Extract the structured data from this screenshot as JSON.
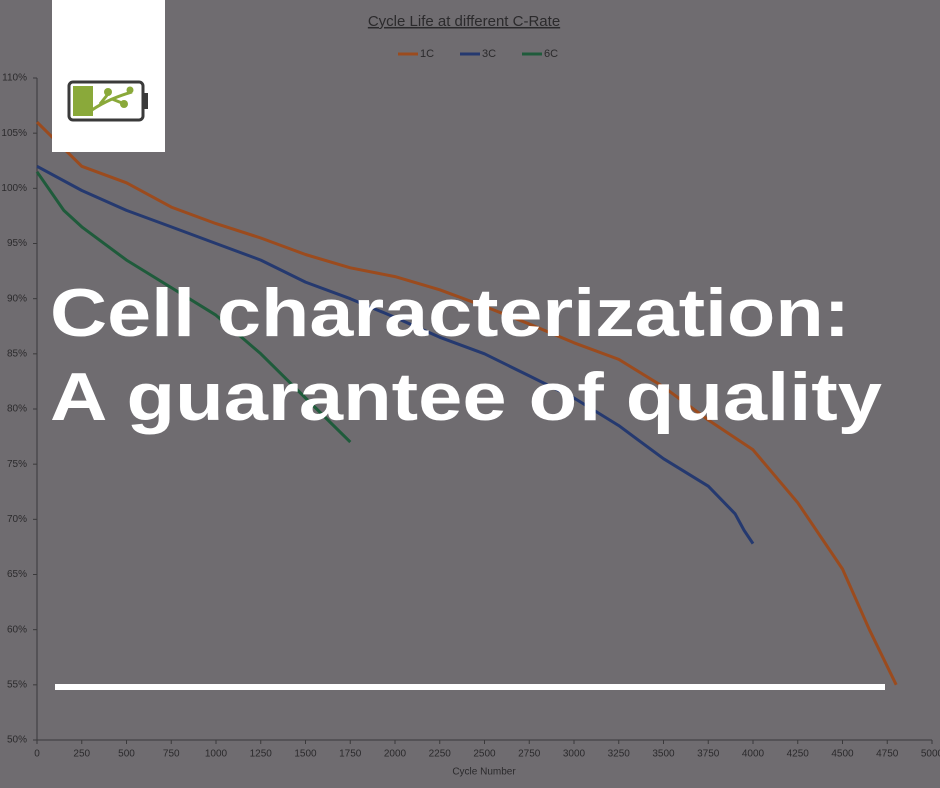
{
  "chart_data": {
    "type": "line",
    "title": "Cycle Life at different C-Rate",
    "xlabel": "Cycle Number",
    "xlim": [
      0,
      5000
    ],
    "xticks": [
      0,
      250,
      500,
      750,
      1000,
      1250,
      1500,
      1750,
      2000,
      2250,
      2500,
      2750,
      3000,
      3250,
      3500,
      3750,
      4000,
      4250,
      4500,
      4750,
      5000
    ],
    "ylim": [
      50,
      110
    ],
    "yticks": [
      {
        "value": 50,
        "label": "50%"
      },
      {
        "value": 55,
        "label": "55%"
      },
      {
        "value": 60,
        "label": "60%"
      },
      {
        "value": 65,
        "label": "65%"
      },
      {
        "value": 70,
        "label": "70%"
      },
      {
        "value": 75,
        "label": "75%"
      },
      {
        "value": 80,
        "label": "80%"
      },
      {
        "value": 85,
        "label": "85%"
      },
      {
        "value": 90,
        "label": "90%"
      },
      {
        "value": 95,
        "label": "95%"
      },
      {
        "value": 100,
        "label": "100%"
      },
      {
        "value": 105,
        "label": "105%"
      },
      {
        "value": 110,
        "label": "110%"
      }
    ],
    "grid": false,
    "legend": "top",
    "series": [
      {
        "name": "1C",
        "color": "#9b4b1e",
        "x": [
          0,
          250,
          500,
          750,
          1000,
          1250,
          1500,
          1750,
          2000,
          2250,
          2500,
          2750,
          3000,
          3250,
          3500,
          3750,
          4000,
          4250,
          4500,
          4650,
          4800
        ],
        "values": [
          106,
          102,
          100.5,
          98.3,
          96.8,
          95.5,
          94,
          92.8,
          92,
          90.8,
          89.3,
          87.7,
          86,
          84.5,
          82,
          79,
          76.3,
          71.5,
          65.5,
          60,
          55
        ]
      },
      {
        "name": "3C",
        "color": "#25396f",
        "x": [
          0,
          250,
          500,
          750,
          1000,
          1250,
          1500,
          1750,
          2000,
          2250,
          2500,
          2750,
          3000,
          3250,
          3500,
          3750,
          3900,
          3950,
          4000
        ],
        "values": [
          102,
          99.8,
          98,
          96.5,
          95,
          93.5,
          91.5,
          90,
          88.3,
          86.5,
          85,
          83,
          81,
          78.5,
          75.5,
          73,
          70.5,
          69,
          67.8
        ]
      },
      {
        "name": "6C",
        "color": "#1f5b3b",
        "x": [
          0,
          150,
          250,
          500,
          750,
          1000,
          1250,
          1500,
          1750
        ],
        "values": [
          101.5,
          98,
          96.5,
          93.5,
          91,
          88.5,
          85,
          81,
          77
        ]
      }
    ]
  },
  "headline": [
    "Cell characterization:",
    "A guarantee of quality"
  ]
}
